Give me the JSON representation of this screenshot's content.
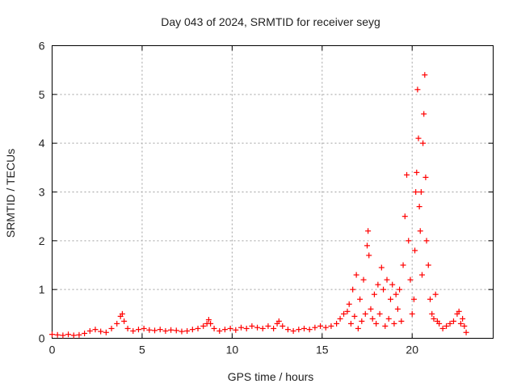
{
  "chart_data": {
    "type": "scatter",
    "title": "Day 043 of 2024, SRMTID for receiver seyg",
    "xlabel": "GPS time / hours",
    "ylabel": "SRMTID / TECUs",
    "xlim": [
      0,
      24.5
    ],
    "ylim": [
      0,
      6
    ],
    "xticks": [
      "0",
      "5",
      "10",
      "15",
      "20"
    ],
    "yticks": [
      "0",
      "1",
      "2",
      "3",
      "4",
      "5",
      "6"
    ],
    "grid": true,
    "marker": "+",
    "marker_color": "#ff0000",
    "series": [
      {
        "name": "SRMTID",
        "x": [
          0.0,
          0.3,
          0.6,
          0.9,
          1.2,
          1.5,
          1.8,
          2.1,
          2.4,
          2.7,
          3.0,
          3.3,
          3.6,
          3.8,
          3.9,
          4.0,
          4.2,
          4.5,
          4.8,
          5.1,
          5.4,
          5.7,
          6.0,
          6.3,
          6.6,
          6.9,
          7.2,
          7.5,
          7.8,
          8.1,
          8.4,
          8.6,
          8.7,
          8.8,
          9.0,
          9.3,
          9.6,
          9.9,
          10.2,
          10.5,
          10.8,
          11.1,
          11.4,
          11.7,
          12.0,
          12.3,
          12.5,
          12.6,
          12.8,
          13.1,
          13.4,
          13.7,
          14.0,
          14.3,
          14.6,
          14.9,
          15.2,
          15.5,
          15.8,
          16.0,
          16.2,
          16.4,
          16.5,
          16.6,
          16.7,
          16.8,
          16.9,
          17.0,
          17.1,
          17.2,
          17.3,
          17.4,
          17.5,
          17.55,
          17.6,
          17.7,
          17.8,
          17.9,
          18.0,
          18.1,
          18.2,
          18.3,
          18.4,
          18.5,
          18.6,
          18.7,
          18.8,
          18.9,
          19.0,
          19.1,
          19.2,
          19.3,
          19.4,
          19.5,
          19.6,
          19.7,
          19.8,
          19.9,
          20.0,
          20.1,
          20.15,
          20.2,
          20.25,
          20.3,
          20.35,
          20.4,
          20.45,
          20.5,
          20.55,
          20.6,
          20.65,
          20.7,
          20.75,
          20.8,
          20.9,
          21.0,
          21.1,
          21.2,
          21.3,
          21.4,
          21.5,
          21.7,
          21.9,
          22.1,
          22.3,
          22.5,
          22.6,
          22.7,
          22.8,
          22.9,
          23.0
        ],
        "values": [
          0.08,
          0.07,
          0.06,
          0.08,
          0.06,
          0.07,
          0.1,
          0.15,
          0.18,
          0.14,
          0.12,
          0.2,
          0.3,
          0.45,
          0.5,
          0.35,
          0.2,
          0.15,
          0.18,
          0.2,
          0.17,
          0.16,
          0.18,
          0.15,
          0.17,
          0.16,
          0.14,
          0.15,
          0.18,
          0.2,
          0.25,
          0.3,
          0.38,
          0.3,
          0.2,
          0.15,
          0.18,
          0.2,
          0.17,
          0.22,
          0.2,
          0.25,
          0.22,
          0.2,
          0.25,
          0.2,
          0.3,
          0.35,
          0.25,
          0.18,
          0.15,
          0.18,
          0.2,
          0.18,
          0.22,
          0.25,
          0.22,
          0.25,
          0.3,
          0.4,
          0.5,
          0.55,
          0.7,
          0.3,
          1.0,
          0.45,
          1.3,
          0.2,
          0.8,
          0.35,
          1.2,
          0.5,
          1.9,
          2.2,
          1.7,
          0.6,
          0.4,
          0.9,
          0.3,
          1.1,
          0.5,
          1.45,
          1.0,
          0.25,
          1.2,
          0.4,
          0.8,
          1.1,
          0.3,
          0.9,
          0.6,
          1.0,
          0.35,
          1.5,
          2.5,
          3.35,
          2.0,
          1.2,
          0.5,
          0.8,
          1.8,
          3.0,
          3.4,
          5.1,
          4.1,
          2.7,
          2.2,
          3.0,
          1.3,
          4.0,
          4.6,
          5.4,
          3.3,
          2.0,
          1.5,
          0.8,
          0.5,
          0.4,
          0.9,
          0.35,
          0.3,
          0.2,
          0.25,
          0.3,
          0.35,
          0.5,
          0.55,
          0.3,
          0.4,
          0.25,
          0.12
        ]
      }
    ]
  }
}
